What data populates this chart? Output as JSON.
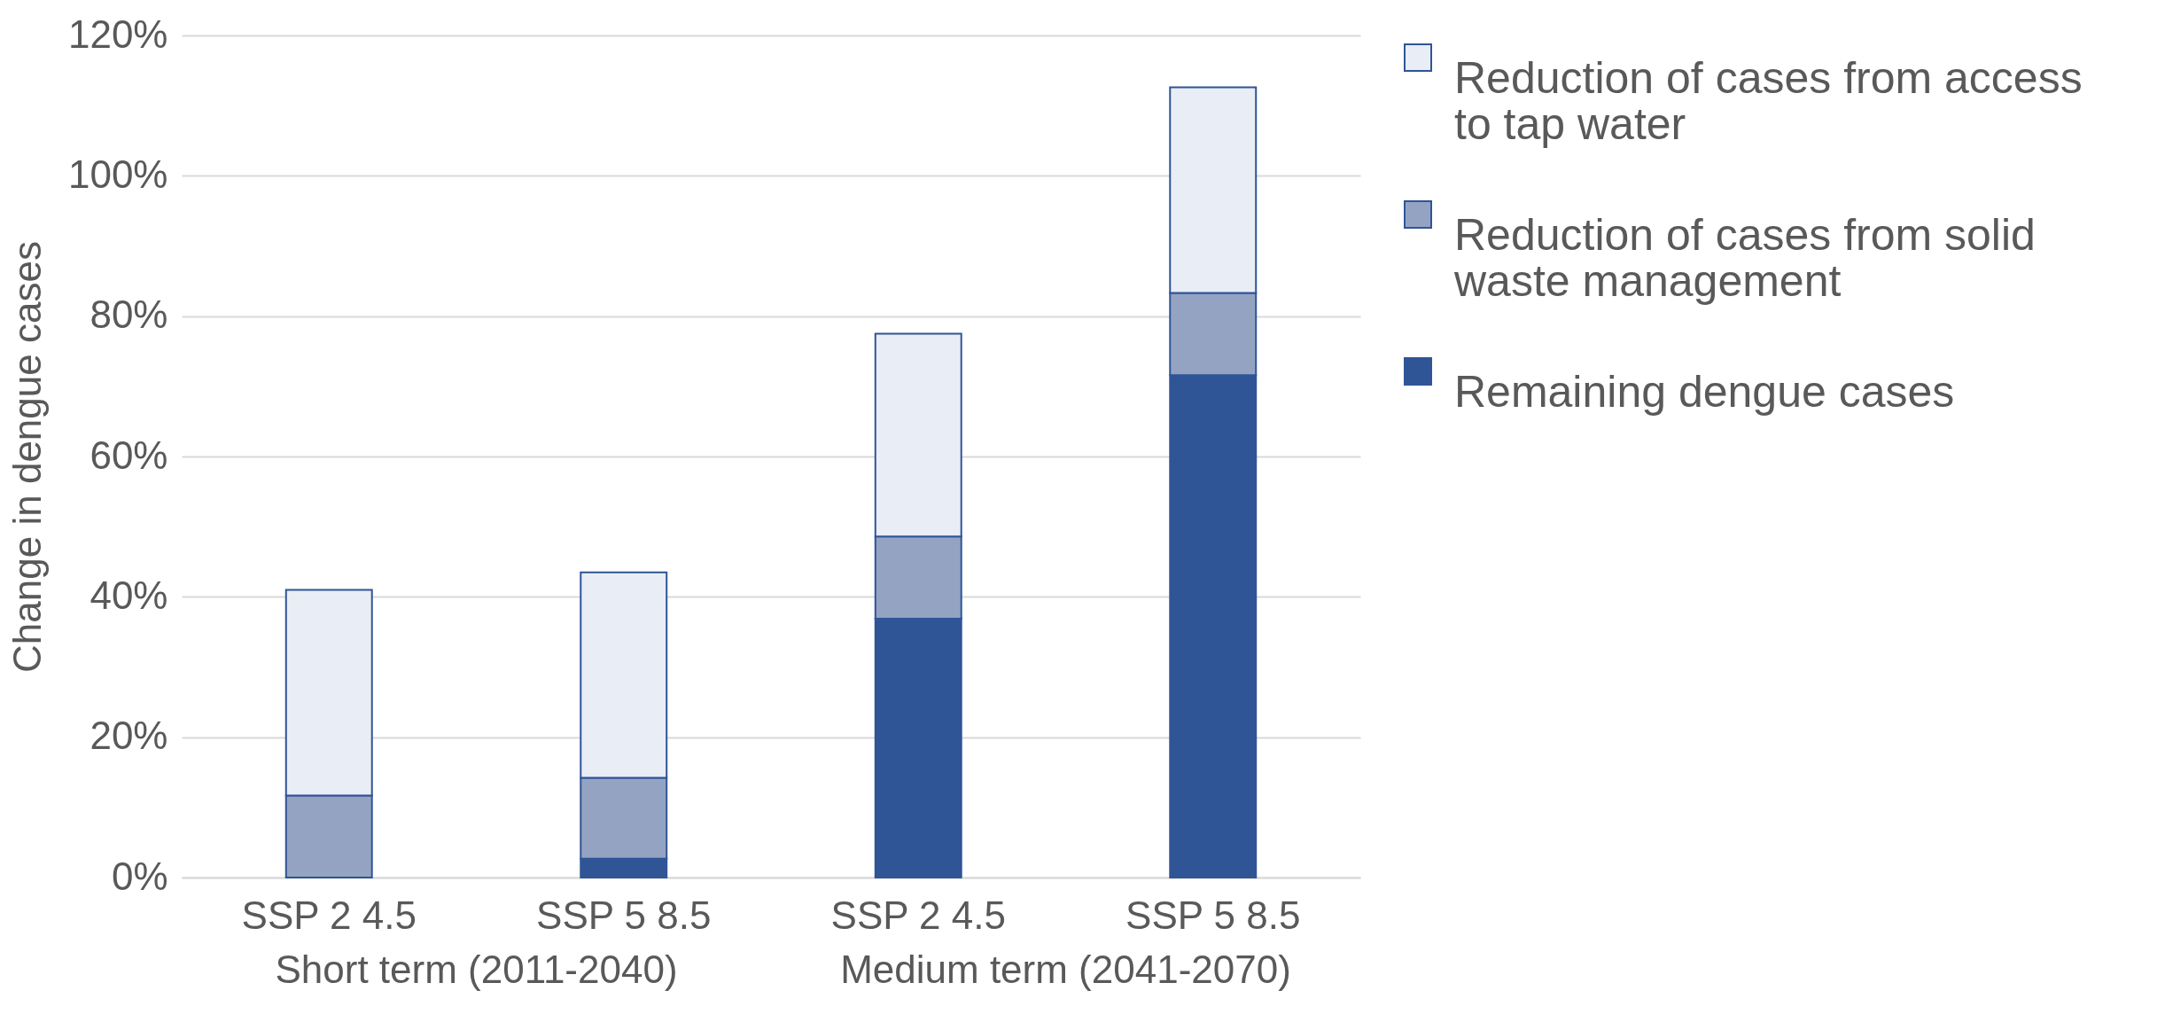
{
  "chart_data": {
    "type": "bar",
    "stacked": true,
    "ylabel": "Change in dengue cases",
    "categories": [
      "SSP 2 4.5",
      "SSP 5 8.5",
      "SSP 2 4.5",
      "SSP 5 8.5"
    ],
    "series": [
      {
        "name": "Remaining dengue cases",
        "color": "#2f5597",
        "values": [
          0,
          2.7,
          36.9,
          71.6
        ]
      },
      {
        "name": "Reduction of cases from solid waste management",
        "color": "#95a3c3",
        "values": [
          11.7,
          11.5,
          11.7,
          11.7
        ]
      },
      {
        "name": "Reduction of cases from access to tap water",
        "color": "#e9edf5",
        "values": [
          29.3,
          29.3,
          28.9,
          29.3
        ]
      }
    ],
    "ylim": [
      0,
      120
    ],
    "yticks": [
      {
        "value": 0,
        "label": "0%"
      },
      {
        "value": 20,
        "label": "20%"
      },
      {
        "value": 40,
        "label": "40%"
      },
      {
        "value": 60,
        "label": "60%"
      },
      {
        "value": 80,
        "label": "80%"
      },
      {
        "value": 100,
        "label": "100%"
      },
      {
        "value": 120,
        "label": "120%"
      }
    ],
    "grid": "y",
    "legend": "right",
    "annotations": [
      "Short term (2011-2040)",
      "Medium term (2041-2070)"
    ]
  }
}
